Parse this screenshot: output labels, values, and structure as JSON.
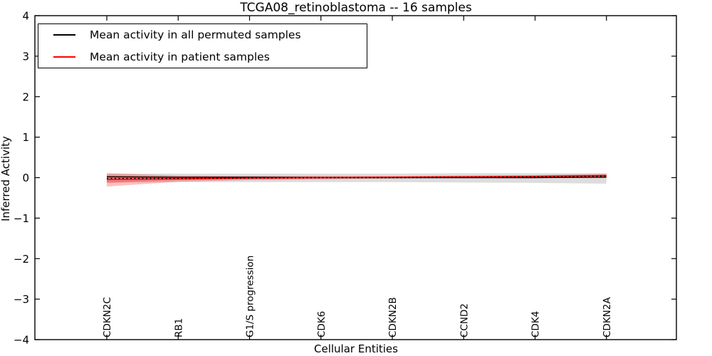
{
  "figure": {
    "title": "TCGA08_retinoblastoma -- 16 samples",
    "background": "#ffffff",
    "border_color": "#000000"
  },
  "legend": {
    "items": [
      {
        "label": "Mean activity in all permuted samples",
        "color": "#000000"
      },
      {
        "label": "Mean activity in patient samples",
        "color": "#ff0000"
      }
    ]
  },
  "chart_data": {
    "type": "line",
    "title": "TCGA08_retinoblastoma -- 16 samples",
    "xlabel": "Cellular Entities",
    "ylabel": "Inferred Activity",
    "ylim": [
      -4,
      4
    ],
    "yticks": [
      "4",
      "3",
      "2",
      "1",
      "0",
      "−1",
      "−2",
      "−3",
      "−4"
    ],
    "ytick_values": [
      4,
      3,
      2,
      1,
      0,
      -1,
      -2,
      -3,
      -4
    ],
    "categories": [
      "CDKN2C",
      "RB1",
      "G1/S progression",
      "CDK6",
      "CDKN2B",
      "CCND2",
      "CDK4",
      "CDKN2A"
    ],
    "grid": false,
    "legend_position": "upper-left",
    "series": [
      {
        "name": "Mean activity in all permuted samples",
        "color": "#000000",
        "style": "solid",
        "width": 1.4,
        "values": [
          0.02,
          0.01,
          0.01,
          0.0,
          0.0,
          0.0,
          0.0,
          0.01
        ]
      },
      {
        "name": "Mean activity in patient samples",
        "color": "#ff0000",
        "style": "solid",
        "width": 1.6,
        "values": [
          -0.04,
          -0.03,
          -0.01,
          0.0,
          0.01,
          0.02,
          0.03,
          0.05
        ]
      },
      {
        "name": "dotted overlay line",
        "color": "#000000",
        "style": "dotted",
        "width": 1.6,
        "values": [
          -0.02,
          -0.02,
          -0.01,
          0.0,
          0.0,
          0.01,
          0.02,
          0.04
        ]
      }
    ],
    "bands": [
      {
        "name": "permuted samples band",
        "color": "#aaaaaa",
        "opacity": 0.4,
        "upper": [
          0.1,
          0.1,
          0.1,
          0.1,
          0.1,
          0.11,
          0.11,
          0.11
        ],
        "lower": [
          -0.12,
          -0.11,
          -0.11,
          -0.11,
          -0.11,
          -0.12,
          -0.13,
          -0.15
        ]
      },
      {
        "name": "patient samples band outer",
        "color": "#ff0000",
        "opacity": 0.25,
        "upper": [
          0.11,
          0.05,
          0.04,
          0.04,
          0.04,
          0.05,
          0.06,
          0.09
        ],
        "lower": [
          -0.22,
          -0.1,
          -0.06,
          -0.04,
          -0.02,
          -0.01,
          0.0,
          0.01
        ]
      },
      {
        "name": "patient samples band inner",
        "color": "#ff0000",
        "opacity": 0.25,
        "upper": [
          0.05,
          0.03,
          0.03,
          0.03,
          0.03,
          0.04,
          0.05,
          0.08
        ],
        "lower": [
          -0.13,
          -0.06,
          -0.04,
          -0.02,
          -0.01,
          0.0,
          0.01,
          0.02
        ]
      }
    ]
  }
}
